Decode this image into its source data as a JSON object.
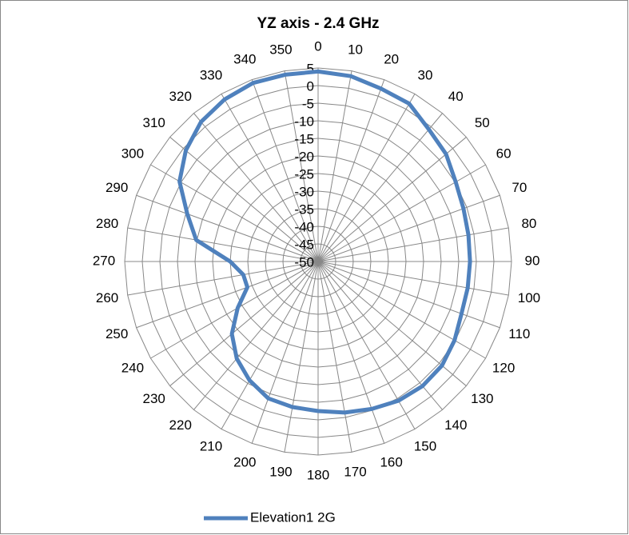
{
  "chart_data": {
    "type": "radar",
    "title": "YZ axis - 2.4 GHz",
    "categories": [
      "0",
      "10",
      "20",
      "30",
      "40",
      "50",
      "60",
      "70",
      "80",
      "90",
      "100",
      "110",
      "120",
      "130",
      "140",
      "150",
      "160",
      "170",
      "180",
      "190",
      "200",
      "210",
      "220",
      "230",
      "240",
      "250",
      "260",
      "270",
      "280",
      "290",
      "300",
      "310",
      "320",
      "330",
      "340",
      "350"
    ],
    "series": [
      {
        "name": "Elevation1 2G",
        "color": "#4f81bd",
        "values": [
          4,
          3.5,
          2.3,
          1.8,
          -1,
          -2.5,
          -4.8,
          -6,
          -6.6,
          -6.8,
          -6.8,
          -6.6,
          -5.2,
          -4,
          -3.8,
          -4.3,
          -5.4,
          -6.4,
          -7.5,
          -8,
          -8.6,
          -11,
          -14,
          -18,
          -23.6,
          -28.6,
          -28.4,
          -25,
          -14.8,
          -10.4,
          -4.5,
          -0.9,
          1.8,
          3.2,
          4,
          3.9
        ]
      }
    ],
    "rlim": [
      -50,
      5
    ],
    "rticks": [
      -50,
      -45,
      -40,
      -35,
      -30,
      -25,
      -20,
      -15,
      -10,
      -5,
      0,
      5
    ],
    "grid": true,
    "legend": "bottom"
  }
}
